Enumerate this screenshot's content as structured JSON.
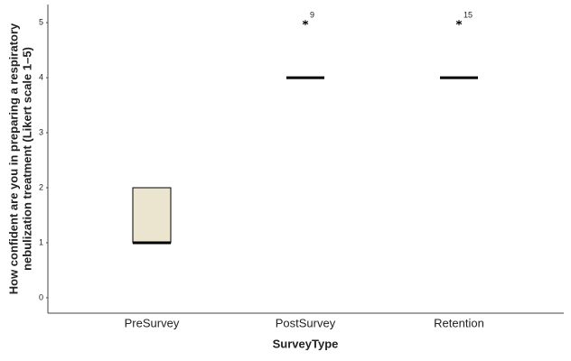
{
  "chart_data": {
    "type": "box",
    "xlabel": "SurveyType",
    "ylabel": [
      "How confident are you in preparing a respiratory",
      "nebulization treatment (Likert scale 1–5)"
    ],
    "categories": [
      "PreSurvey",
      "PostSurvey",
      "Retention"
    ],
    "boxes": [
      {
        "min": 1,
        "q1": 1,
        "median": 1,
        "q3": 2,
        "max": 2,
        "outliers": []
      },
      {
        "min": 4,
        "q1": 4,
        "median": 4,
        "q3": 4,
        "max": 4,
        "outliers": [
          {
            "value": 5,
            "label": "9"
          }
        ]
      },
      {
        "min": 4,
        "q1": 4,
        "median": 4,
        "q3": 4,
        "max": 4,
        "outliers": [
          {
            "value": 5,
            "label": "15"
          }
        ]
      }
    ],
    "color": "#ebe5cf",
    "ylim": [
      -0.28,
      5.33
    ],
    "yticks": [
      0,
      1,
      2,
      3,
      4,
      5
    ],
    "grid": false
  }
}
